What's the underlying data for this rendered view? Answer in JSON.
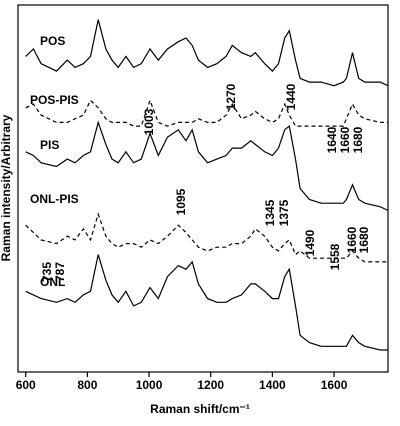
{
  "chart_data": {
    "type": "line",
    "xlabel": "Raman shift/cm⁻¹",
    "ylabel": "Raman intensity/Arbitrary",
    "x": [
      600,
      625,
      650,
      700,
      735,
      760,
      787,
      810,
      835,
      860,
      880,
      900,
      925,
      950,
      975,
      1003,
      1030,
      1060,
      1095,
      1120,
      1140,
      1160,
      1190,
      1220,
      1250,
      1270,
      1300,
      1330,
      1345,
      1375,
      1400,
      1420,
      1440,
      1455,
      1475,
      1490,
      1520,
      1558,
      1600,
      1630,
      1640,
      1660,
      1680,
      1700,
      1750,
      1775
    ],
    "xlim": [
      575,
      1775
    ],
    "xticks": [
      600,
      800,
      1000,
      1200,
      1400,
      1600
    ],
    "ylim": [
      0,
      100
    ],
    "series": [
      {
        "name": "POS",
        "color": "#000000",
        "dashed": false,
        "values": [
          86,
          88,
          84,
          82,
          85,
          83,
          84,
          86,
          96,
          88,
          85,
          83,
          86,
          83,
          84,
          88,
          85,
          88,
          90,
          91,
          89,
          85,
          83,
          84,
          86,
          89,
          87,
          86,
          87,
          84,
          82,
          84,
          91,
          93,
          85,
          80,
          79,
          79,
          78,
          79,
          80,
          87,
          80,
          79,
          79,
          78
        ]
      },
      {
        "name": "POS-PIS",
        "color": "#000000",
        "dashed": true,
        "values": [
          72,
          73,
          70,
          68,
          68,
          69,
          70,
          74,
          72,
          69,
          68,
          68,
          68,
          67,
          67,
          74,
          68,
          67,
          68,
          68,
          68,
          69,
          68,
          68,
          70,
          73,
          69,
          70,
          71,
          69,
          68,
          69,
          73,
          70,
          67,
          67,
          67,
          67,
          67,
          67,
          69,
          73,
          70,
          69,
          68,
          68
        ]
      },
      {
        "name": "PIS",
        "color": "#000000",
        "dashed": false,
        "values": [
          60,
          59,
          57,
          56,
          58,
          57,
          59,
          60,
          68,
          62,
          58,
          57,
          60,
          57,
          58,
          65,
          59,
          64,
          66,
          63,
          66,
          60,
          57,
          58,
          59,
          61,
          61,
          63,
          62,
          60,
          59,
          61,
          66,
          67,
          58,
          50,
          47,
          46,
          46,
          46,
          47,
          51,
          47,
          46,
          45,
          44
        ]
      },
      {
        "name": "ONL-PIS",
        "color": "#000000",
        "dashed": true,
        "values": [
          40,
          38,
          36,
          35,
          37,
          36,
          39,
          36,
          43,
          37,
          35,
          34,
          35,
          35,
          34,
          36,
          35,
          37,
          40,
          38,
          36,
          34,
          33,
          34,
          34,
          35,
          35,
          37,
          39,
          37,
          34,
          33,
          35,
          36,
          32,
          33,
          31,
          31,
          31,
          31,
          31,
          33,
          31,
          30,
          30,
          30
        ]
      },
      {
        "name": "ONL",
        "color": "#000000",
        "dashed": false,
        "values": [
          22,
          21,
          20,
          19,
          20,
          19,
          21,
          22,
          32,
          25,
          21,
          19,
          22,
          18,
          19,
          23,
          20,
          26,
          29,
          28,
          30,
          24,
          20,
          19,
          19,
          20,
          21,
          24,
          24,
          22,
          20,
          20,
          26,
          28,
          18,
          10,
          8,
          7,
          7,
          7,
          7,
          10,
          8,
          7,
          6,
          6
        ]
      }
    ],
    "annotations": [
      "1003",
      "1270",
      "1440",
      "1640",
      "1660",
      "1680",
      "1095",
      "1345",
      "1375",
      "1490",
      "1558",
      "1660",
      "1680",
      "735",
      "787"
    ]
  }
}
